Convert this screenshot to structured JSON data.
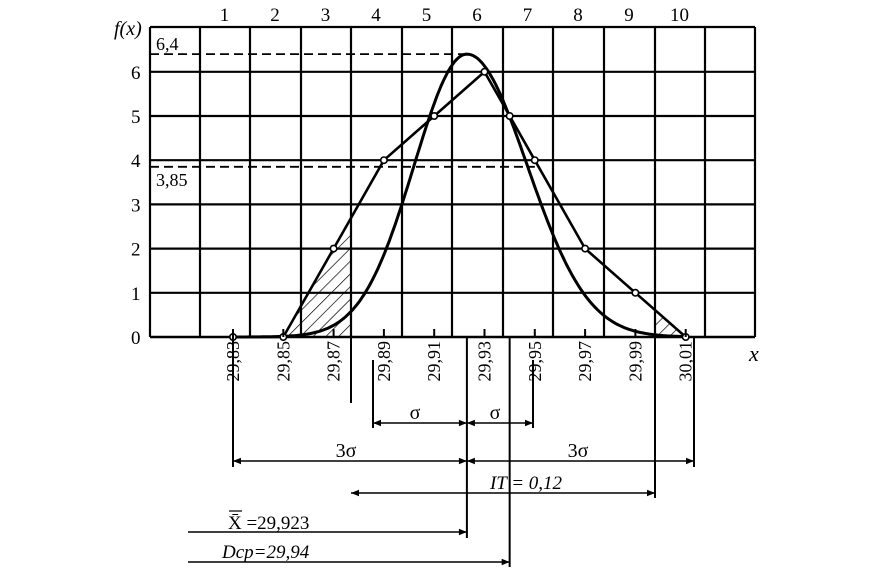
{
  "chart_data": {
    "type": "line",
    "y_axis_label": "f(x)",
    "x_axis_label": "x",
    "y_ticks": [
      "0",
      "1",
      "2",
      "3",
      "4",
      "5",
      "6"
    ],
    "column_numbers": [
      "1",
      "2",
      "3",
      "4",
      "5",
      "6",
      "7",
      "8",
      "9",
      "10"
    ],
    "x_tick_labels": [
      "29,83",
      "29,85",
      "29,87",
      "29,89",
      "29,91",
      "29,93",
      "29,95",
      "29,97",
      "29,99",
      "30,01"
    ],
    "reference_levels": [
      {
        "label": "6,4",
        "value": 6.4
      },
      {
        "label": "3,85",
        "value": 3.85
      }
    ],
    "series": [
      {
        "kind": "polygon",
        "x": [
          29.83,
          29.85,
          29.87,
          29.89,
          29.91,
          29.93,
          29.94,
          29.95,
          29.97,
          29.99,
          30.01
        ],
        "y": [
          0,
          0,
          2,
          4,
          5,
          6,
          5,
          4,
          2,
          1,
          0
        ]
      },
      {
        "kind": "normal_curve",
        "mean": 29.923,
        "peak": 6.4
      }
    ],
    "annotations": {
      "sigma": "σ",
      "three_sigma": "3σ",
      "tolerance": "IT = 0,12",
      "mean_label": "X̄ =29,923",
      "dcp_label": "Dср=29,94"
    },
    "grid": true
  }
}
